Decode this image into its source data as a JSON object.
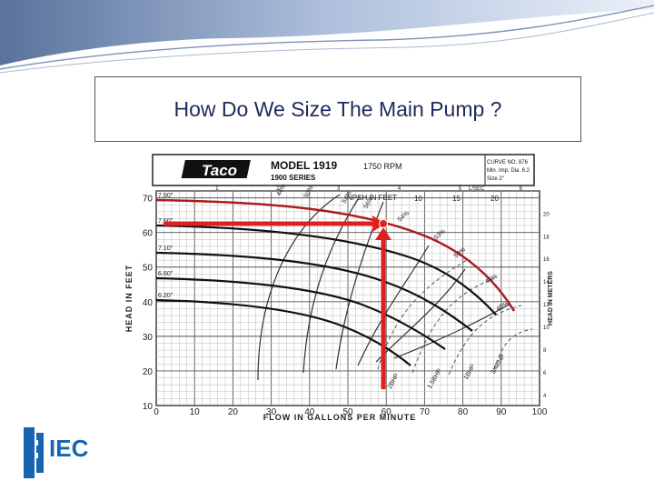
{
  "slide": {
    "title": "How Do We Size The Main Pump ?"
  },
  "pump_chart": {
    "brand": "Taco",
    "model": "MODEL 1919",
    "series": "1900 SERIES",
    "rpm": "1750 RPM",
    "curve_info": [
      "CURVE NO. 876",
      "Min. Imp. Dia. 6.2",
      "Size 2\""
    ],
    "x_axis_label": "FLOW IN GALLONS PER MINUTE",
    "y_axis_left_label": "HEAD IN FEET",
    "y_axis_right_label": "HEAD IN METERS",
    "top_axis_label": "L/SEC",
    "npsh_label": "NPSH IN FEET",
    "x_ticks": [
      "0",
      "10",
      "20",
      "30",
      "40",
      "50",
      "60",
      "70",
      "80",
      "90",
      "100"
    ],
    "y_ticks": [
      "10",
      "20",
      "30",
      "40",
      "50",
      "60",
      "70"
    ],
    "meter_ticks": [
      "4",
      "6",
      "8",
      "10",
      "12",
      "14",
      "16",
      "18",
      "20"
    ],
    "lsec_ticks": [
      "1",
      "2",
      "3",
      "4",
      "5",
      "6"
    ],
    "npsh_ticks": [
      "10",
      "15",
      "20"
    ],
    "impeller_labels": [
      "7.90\"",
      "7.60\"",
      "7.10\"",
      "6.60\"",
      "6.20\""
    ],
    "efficiency_labels": [
      "44%",
      "50%",
      "54%",
      "56%",
      "54%",
      "53%",
      "50%",
      "45%",
      "40%"
    ],
    "bhp_labels": [
      "2BHP",
      "1.5BHP",
      "1BHP",
      "3/4BHP"
    ],
    "operating_point": {
      "flow_gpm": 60,
      "head_ft": 60
    },
    "highlight_color": "#e02020"
  },
  "logo": {
    "text": "IEC",
    "color": "#1565b0"
  }
}
